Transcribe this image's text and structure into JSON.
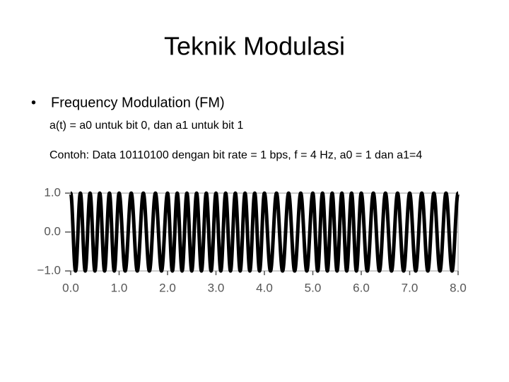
{
  "slide": {
    "title": "Teknik Modulasi",
    "bullet": "Frequency Modulation (FM)",
    "lines": [
      "a(t) = a0 untuk bit 0, dan a1 untuk bit 1",
      "Contoh: Data 10110100 dengan bit rate = 1 bps, f = 4 Hz, a0 = 1 dan a1=4"
    ]
  },
  "chart_data": {
    "type": "line",
    "color": "#000000",
    "grid": true,
    "xlim": [
      0,
      8
    ],
    "ylim": [
      -1,
      1
    ],
    "xticks": [
      {
        "value": 0,
        "label": "0.0"
      },
      {
        "value": 1,
        "label": "1.0"
      },
      {
        "value": 2,
        "label": "2.0"
      },
      {
        "value": 3,
        "label": "3.0"
      },
      {
        "value": 4,
        "label": "4.0"
      },
      {
        "value": 5,
        "label": "5.0"
      },
      {
        "value": 6,
        "label": "6.0"
      },
      {
        "value": 7,
        "label": "7.0"
      },
      {
        "value": 8,
        "label": "8.0"
      }
    ],
    "yticks": [
      {
        "value": -1,
        "label": "−1.0"
      },
      {
        "value": 0,
        "label": "0.0"
      },
      {
        "value": 1,
        "label": "1.0"
      }
    ],
    "x": [
      0,
      0.1,
      0.2,
      0.3,
      0.4,
      0.5,
      0.6,
      0.7,
      0.8,
      0.9,
      1,
      1.125,
      1.25,
      1.375,
      1.5,
      1.625,
      1.75,
      1.875,
      2,
      2.1,
      2.2,
      2.3,
      2.4,
      2.5,
      2.6,
      2.7,
      2.8,
      2.9,
      3,
      3.1,
      3.2,
      3.3,
      3.4,
      3.5,
      3.6,
      3.7,
      3.8,
      3.9,
      4,
      4.125,
      4.25,
      4.375,
      4.5,
      4.625,
      4.75,
      4.875,
      5,
      5.1,
      5.2,
      5.3,
      5.4,
      5.5,
      5.6,
      5.7,
      5.8,
      5.9,
      6,
      6.125,
      6.25,
      6.375,
      6.5,
      6.625,
      6.75,
      6.875,
      7,
      7.125,
      7.25,
      7.375,
      7.5,
      7.625,
      7.75,
      7.875,
      8
    ],
    "values": [
      1,
      -1,
      1,
      -1,
      1,
      -1,
      1,
      -1,
      1,
      -1,
      1,
      -1,
      1,
      -1,
      1,
      -1,
      1,
      -1,
      1,
      -1,
      1,
      -1,
      1,
      -1,
      1,
      -1,
      1,
      -1,
      1,
      -1,
      1,
      -1,
      1,
      -1,
      1,
      -1,
      1,
      -1,
      1,
      -1,
      1,
      -1,
      1,
      -1,
      1,
      -1,
      1,
      -1,
      1,
      -1,
      1,
      -1,
      1,
      -1,
      1,
      -1,
      1,
      -1,
      1,
      -1,
      1,
      -1,
      1,
      -1,
      1,
      -1,
      1,
      -1,
      1,
      -1,
      1,
      -1,
      1
    ]
  }
}
